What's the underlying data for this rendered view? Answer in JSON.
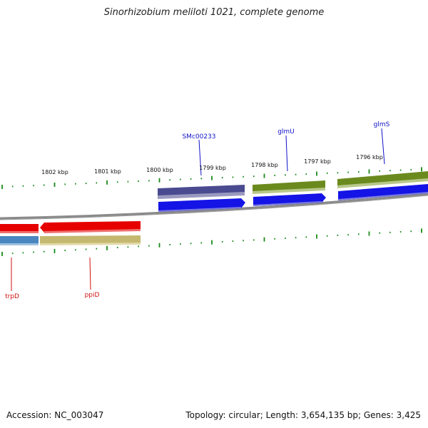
{
  "title": "Sinorhizobium meliloti 1021, complete genome",
  "footer": {
    "accession": "Accession: NC_003047",
    "summary": "Topology: circular; Length: 3,654,135 bp; Genes: 3,425"
  },
  "tick_labels": [
    "1802 kbp",
    "1801 kbp",
    "1800 kbp",
    "1799 kbp",
    "1798 kbp",
    "1797 kbp",
    "1796 kbp"
  ],
  "gene_labels": [
    "SMc00233",
    "glmU",
    "glmS",
    "trpD",
    "ppiD"
  ],
  "colors": {
    "label_blue": "#1010c8",
    "label_red": "#d01010",
    "tick_green": "#1a8a1a",
    "backbone": "#7a7a7a",
    "cds_blue": "#1414e6",
    "cds_red": "#e60000",
    "purple_feature": "#4a4a90",
    "olive_feature": "#6b8a1e",
    "steel_feature": "#4a86c0",
    "khaki_feature": "#c4b870"
  }
}
